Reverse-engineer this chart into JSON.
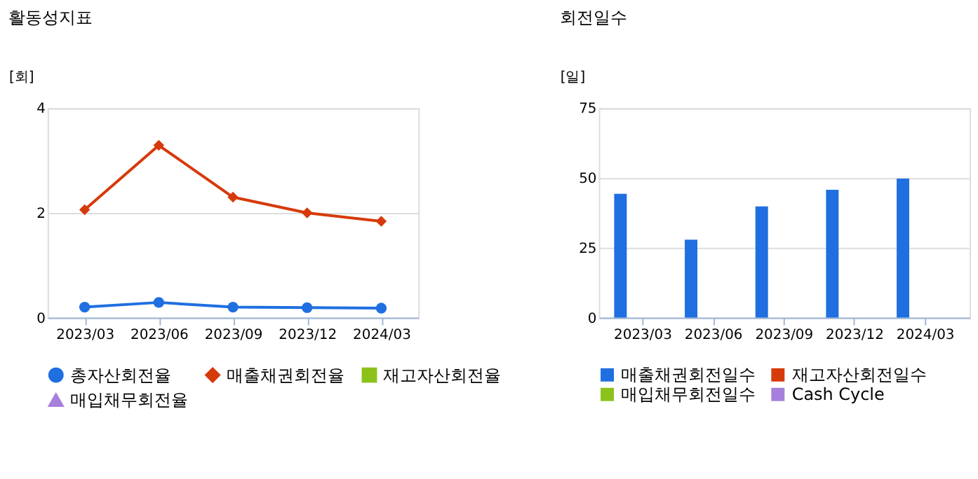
{
  "chart_data": [
    {
      "type": "line",
      "title": "활동성지표",
      "ylabel": "[회]",
      "categories": [
        "2023/03",
        "2023/06",
        "2023/09",
        "2023/12",
        "2024/03"
      ],
      "series": [
        {
          "name": "총자산회전율",
          "color": "#1f6fe0",
          "marker": "circle",
          "values": [
            0.2,
            0.29,
            0.2,
            0.19,
            0.18
          ]
        },
        {
          "name": "매출채권회전율",
          "color": "#d63a0a",
          "marker": "diamond",
          "values": [
            2.06,
            3.29,
            2.3,
            2.0,
            1.84
          ]
        },
        {
          "name": "재고자산회전율",
          "color": "#8cc21c",
          "marker": "square",
          "values": [
            null,
            null,
            null,
            null,
            null
          ]
        },
        {
          "name": "매입채무회전율",
          "color": "#a77fdc",
          "marker": "triangle",
          "values": [
            null,
            null,
            null,
            null,
            null
          ]
        }
      ],
      "ylim": [
        0,
        4
      ],
      "yticks": [
        0,
        2,
        4
      ],
      "grid": "y",
      "legend": "bottom"
    },
    {
      "type": "bar",
      "title": "회전일수",
      "ylabel": "[일]",
      "categories": [
        "2023/03",
        "2023/06",
        "2023/09",
        "2023/12",
        "2024/03"
      ],
      "series": [
        {
          "name": "매출채권회전일수",
          "color": "#1f6fe0",
          "values": [
            44.3,
            27.9,
            39.8,
            45.8,
            49.8
          ]
        },
        {
          "name": "재고자산회전일수",
          "color": "#d63a0a",
          "values": [
            null,
            null,
            null,
            null,
            null
          ]
        },
        {
          "name": "매입채무회전일수",
          "color": "#8cc21c",
          "values": [
            null,
            null,
            null,
            null,
            null
          ]
        },
        {
          "name": "Cash Cycle",
          "color": "#a77fdc",
          "values": [
            null,
            null,
            null,
            null,
            null
          ]
        }
      ],
      "ylim": [
        0,
        75
      ],
      "yticks": [
        0,
        25,
        50,
        75
      ],
      "grid": "y",
      "legend": "bottom"
    }
  ]
}
